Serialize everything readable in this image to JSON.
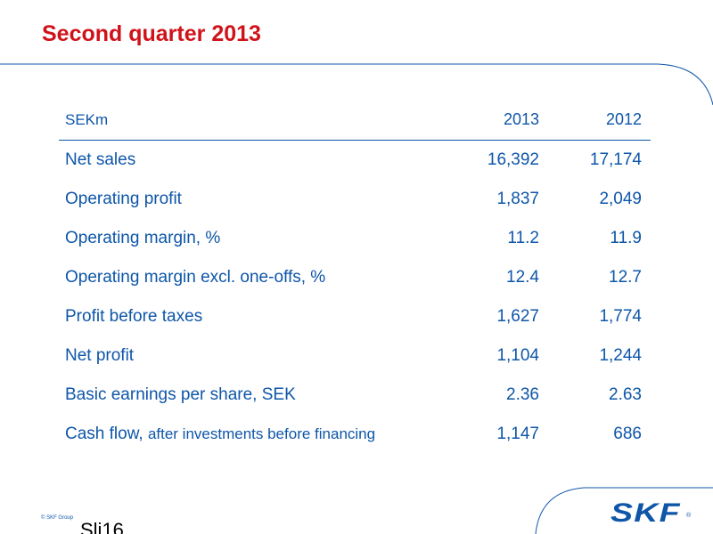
{
  "slide": {
    "title": "Second quarter 2013",
    "copyright": "© SKF Group",
    "slide_number": "Sli16",
    "logo_text": "SKF",
    "logo_mark": "®"
  },
  "table": {
    "headers": [
      "SEKm",
      "2013",
      "2012"
    ],
    "rows": [
      {
        "label": "Net sales",
        "v2013": "16,392",
        "v2012": "17,174"
      },
      {
        "label": "Operating profit",
        "v2013": "1,837",
        "v2012": "2,049"
      },
      {
        "label": "Operating margin, %",
        "v2013": "11.2",
        "v2012": "11.9"
      },
      {
        "label": "Operating margin excl. one-offs, %",
        "v2013": "12.4",
        "v2012": "12.7"
      },
      {
        "label": "Profit before taxes",
        "v2013": "1,627",
        "v2012": "1,774"
      },
      {
        "label": "Net profit",
        "v2013": "1,104",
        "v2012": "1,244"
      },
      {
        "label": "Basic earnings per share, SEK",
        "v2013": "2.36",
        "v2012": "2.63"
      },
      {
        "label_main": "Cash flow, ",
        "label_small": "after investments before financing",
        "v2013": "1,147",
        "v2012": "686"
      }
    ]
  },
  "colors": {
    "title": "#d0131a",
    "text": "#0e56a8",
    "rule": "#0e56a8"
  }
}
